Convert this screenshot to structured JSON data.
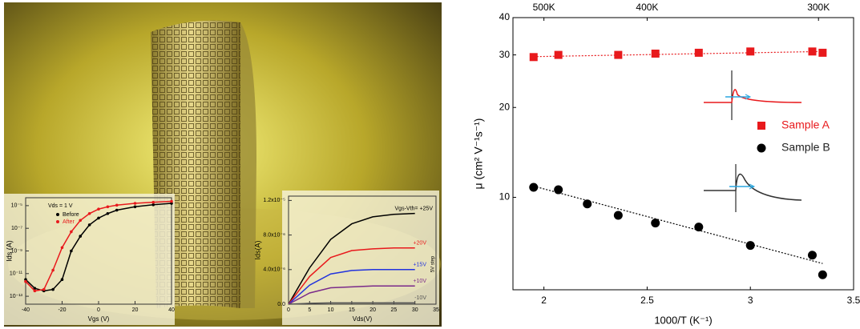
{
  "chart_data": [
    {
      "type": "scatter",
      "y_scale": "log",
      "x_label": "1000/T (K⁻¹)",
      "y_label": "μ (cm² V⁻¹s⁻¹)",
      "xlim": [
        1.85,
        3.5
      ],
      "xticks": [
        2.0,
        2.5,
        3.0,
        3.5
      ],
      "ylim": [
        4.9,
        40
      ],
      "yticks": [
        10,
        20,
        30,
        40
      ],
      "top_ticks": [
        {
          "value": 2.0,
          "label": "500K"
        },
        {
          "value": 2.5,
          "label": "400K"
        },
        {
          "value": 3.33,
          "label": "300K"
        }
      ],
      "legend_position": "right",
      "series": [
        {
          "name": "Sample A",
          "color": "#e8191c",
          "marker": "square",
          "x": [
            1.95,
            2.07,
            2.36,
            2.54,
            2.75,
            3.0,
            3.3,
            3.35
          ],
          "values": [
            29.5,
            30,
            30,
            30.3,
            30.5,
            30.8,
            30.8,
            30.5
          ]
        },
        {
          "name": "Sample B",
          "color": "#000000",
          "marker": "circle",
          "x": [
            1.95,
            2.07,
            2.21,
            2.36,
            2.54,
            2.75,
            3.0,
            3.3,
            3.35
          ],
          "values": [
            10.8,
            10.6,
            9.5,
            8.7,
            8.2,
            7.95,
            6.9,
            6.4,
            5.5
          ]
        }
      ],
      "trend_lines": [
        {
          "color": "#e8191c",
          "x": [
            1.95,
            3.35
          ],
          "values": [
            29.6,
            30.8
          ]
        },
        {
          "color": "#000000",
          "x": [
            1.95,
            3.35
          ],
          "values": [
            10.9,
            6.0
          ]
        }
      ]
    },
    {
      "type": "line",
      "y_scale": "log",
      "x_label": "Vgs (V)",
      "y_label": "Ids (A)",
      "annotation": "Vds = 1 V",
      "xlim": [
        -40,
        40
      ],
      "xticks": [
        -40,
        -20,
        0,
        20,
        40
      ],
      "ylim": [
        2e-14,
        5e-05
      ],
      "yticks": [
        {
          "value": 1e-05,
          "label": "10⁻⁵"
        },
        {
          "value": 1e-07,
          "label": "10⁻⁷"
        },
        {
          "value": 1e-09,
          "label": "10⁻⁹"
        },
        {
          "value": 1e-11,
          "label": "10⁻¹¹"
        },
        {
          "value": 1e-13,
          "label": "10⁻¹³"
        }
      ],
      "x": [
        -40,
        -35,
        -30,
        -25,
        -20,
        -15,
        -10,
        -5,
        0,
        5,
        10,
        20,
        30,
        40
      ],
      "series": [
        {
          "name": "Before",
          "color": "#000000",
          "values": [
            3e-12,
            5e-13,
            3e-13,
            4e-13,
            3e-12,
            1e-09,
            2e-08,
            2e-07,
            8e-07,
            2e-06,
            4e-06,
            8e-06,
            1.2e-05,
            1.6e-05
          ]
        },
        {
          "name": "After",
          "color": "#e8191c",
          "values": [
            2e-12,
            3e-13,
            4e-13,
            2e-11,
            2e-09,
            5e-08,
            5e-07,
            2e-06,
            5e-06,
            8e-06,
            1.1e-05,
            1.6e-05,
            2e-05,
            2.4e-05
          ]
        }
      ]
    },
    {
      "type": "line",
      "y_scale": "linear",
      "x_label": "Vds(V)",
      "y_label": "Ids(A)",
      "annotation": "5V step",
      "xlim": [
        0,
        35
      ],
      "xticks": [
        0,
        5,
        10,
        15,
        20,
        25,
        30,
        35
      ],
      "ylim": [
        0,
        1.25e-05
      ],
      "yticks": [
        {
          "value": 0,
          "label": "0.0"
        },
        {
          "value": 4e-06,
          "label": "4.0x10⁻⁶"
        },
        {
          "value": 8e-06,
          "label": "8.0x10⁻⁶"
        },
        {
          "value": 1.2e-05,
          "label": "1.2x10⁻⁵"
        }
      ],
      "x": [
        0,
        5,
        10,
        15,
        20,
        25,
        30
      ],
      "series": [
        {
          "name": "Vgs-Vth= +25V",
          "color": "#000000",
          "values": [
            0,
            4.2e-06,
            7.5e-06,
            9.3e-06,
            1.01e-05,
            1.04e-05,
            1.05e-05
          ]
        },
        {
          "name": "+20V",
          "color": "#e8191c",
          "values": [
            0,
            3.2e-06,
            5.4e-06,
            6.2e-06,
            6.4e-06,
            6.5e-06,
            6.5e-06
          ]
        },
        {
          "name": "+15V",
          "color": "#2233dd",
          "values": [
            0,
            2.2e-06,
            3.5e-06,
            3.9e-06,
            4e-06,
            4e-06,
            4e-06
          ]
        },
        {
          "name": "+10V",
          "color": "#7a2a8a",
          "values": [
            0,
            1.3e-06,
            1.9e-06,
            2e-06,
            2.1e-06,
            2.1e-06,
            2.1e-06
          ]
        },
        {
          "name": "-10V",
          "color": "#555555",
          "values": [
            0,
            1e-07,
            1.5e-07,
            1.5e-07,
            1.5e-07,
            1.5e-07,
            1.5e-07
          ]
        }
      ]
    }
  ]
}
